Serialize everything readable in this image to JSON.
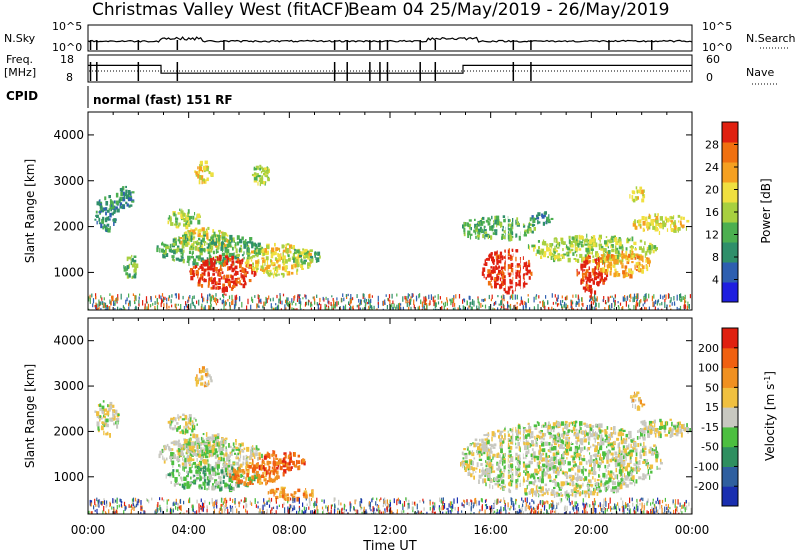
{
  "header": {
    "title": "Christmas Valley West (fitACF)",
    "beam_info": "Beam 04 25/May/2019 - 26/May/2019"
  },
  "summary_panels": {
    "nsky_label": "N.Sky",
    "nsky_ticks": [
      "10^5",
      "10^0"
    ],
    "nsearch_label": "N.Search",
    "nsearch_ticks": [
      "10^5",
      "10^0"
    ],
    "freq_label": "Freq.",
    "freq_unit": "[MHz]",
    "freq_ticks": [
      "18",
      "8"
    ],
    "nave_label": "Nave",
    "nave_ticks": [
      "60",
      "0"
    ],
    "cpid_label": "CPID",
    "cpid_text": "normal (fast) 151 RF"
  },
  "x_axis": {
    "label": "Time UT",
    "ticks": [
      "00:00",
      "04:00",
      "08:00",
      "12:00",
      "16:00",
      "20:00",
      "00:00"
    ]
  },
  "power_panel": {
    "ylabel": "Slant Range [km]",
    "yticks": [
      "1000",
      "2000",
      "3000",
      "4000"
    ],
    "colorbar_label": "Power [dB]",
    "colorbar_ticks": [
      "4",
      "8",
      "12",
      "16",
      "20",
      "24",
      "28"
    ],
    "colors": [
      "#1f1fe0",
      "#2e5fb0",
      "#2f8f6a",
      "#4caf50",
      "#a8d040",
      "#f0e040",
      "#f5a020",
      "#f07010",
      "#e02010"
    ]
  },
  "velocity_panel": {
    "ylabel": "Slant Range [km]",
    "yticks": [
      "1000",
      "2000",
      "3000",
      "4000"
    ],
    "colorbar_label": "Velocity [m s^-1]",
    "colorbar_ticks": [
      "200",
      "100",
      "50",
      "15",
      "-15",
      "-50",
      "-100",
      "-200"
    ],
    "colors": [
      "#1a2fb0",
      "#2f5f9f",
      "#2f8f60",
      "#4cbf40",
      "#c8c8c0",
      "#f0c040",
      "#f09020",
      "#f06010",
      "#e02010"
    ]
  },
  "chart_data": {
    "type": "heatmap",
    "x_range_hours": [
      0,
      24
    ],
    "y_range_km": [
      180,
      4500
    ],
    "freq_mhz": [
      {
        "t": 0,
        "f": 14
      },
      {
        "t": 2.9,
        "f": 14
      },
      {
        "t": 2.9,
        "f": 11
      },
      {
        "t": 14.9,
        "f": 11
      },
      {
        "t": 14.9,
        "f": 14
      },
      {
        "t": 24,
        "f": 14
      }
    ],
    "power_regions": [
      {
        "t0": 0.2,
        "t1": 1.2,
        "r0": 1950,
        "r1": 2700,
        "level": 2
      },
      {
        "t0": 1.0,
        "t1": 1.8,
        "r0": 2400,
        "r1": 2900,
        "level": 2
      },
      {
        "t0": 1.4,
        "t1": 2.0,
        "r0": 900,
        "r1": 1400,
        "level": 3
      },
      {
        "t0": 3.1,
        "t1": 4.4,
        "r0": 2000,
        "r1": 2400,
        "level": 4
      },
      {
        "t0": 3.6,
        "t1": 5.6,
        "r0": 1500,
        "r1": 2000,
        "level": 5
      },
      {
        "t0": 4.2,
        "t1": 4.9,
        "r0": 3000,
        "r1": 3450,
        "level": 5
      },
      {
        "t0": 6.5,
        "t1": 7.2,
        "r0": 2900,
        "r1": 3400,
        "level": 4
      },
      {
        "t0": 2.7,
        "t1": 6.9,
        "r0": 1200,
        "r1": 1900,
        "level": 3
      },
      {
        "t0": 4.0,
        "t1": 6.6,
        "r0": 650,
        "r1": 1400,
        "level": 8
      },
      {
        "t0": 6.2,
        "t1": 8.9,
        "r0": 950,
        "r1": 1650,
        "level": 5
      },
      {
        "t0": 7.9,
        "t1": 9.2,
        "r0": 1200,
        "r1": 1550,
        "level": 3
      },
      {
        "t0": 14.7,
        "t1": 17.8,
        "r0": 1750,
        "r1": 2250,
        "level": 3
      },
      {
        "t0": 15.6,
        "t1": 17.6,
        "r0": 600,
        "r1": 1550,
        "level": 8
      },
      {
        "t0": 17.4,
        "t1": 22.6,
        "r0": 1250,
        "r1": 1850,
        "level": 4
      },
      {
        "t0": 19.4,
        "t1": 20.6,
        "r0": 600,
        "r1": 1400,
        "level": 8
      },
      {
        "t0": 20.1,
        "t1": 22.3,
        "r0": 950,
        "r1": 1500,
        "level": 6
      },
      {
        "t0": 21.6,
        "t1": 23.9,
        "r0": 1900,
        "r1": 2300,
        "level": 5
      },
      {
        "t0": 21.5,
        "t1": 22.1,
        "r0": 2550,
        "r1": 2900,
        "level": 5
      },
      {
        "t0": 17.5,
        "t1": 18.5,
        "r0": 2100,
        "r1": 2350,
        "level": 2
      }
    ],
    "velocity_regions": [
      {
        "t0": 0.2,
        "t1": 1.2,
        "r0": 1950,
        "r1": 2700,
        "level": 4
      },
      {
        "t0": 3.1,
        "t1": 4.4,
        "r0": 2000,
        "r1": 2400,
        "level": 4
      },
      {
        "t0": 3.6,
        "t1": 5.6,
        "r0": 1500,
        "r1": 2000,
        "level": 4
      },
      {
        "t0": 4.2,
        "t1": 4.9,
        "r0": 3000,
        "r1": 3450,
        "level": 5
      },
      {
        "t0": 2.7,
        "t1": 6.9,
        "r0": 1200,
        "r1": 1900,
        "level": 4
      },
      {
        "t0": 3.0,
        "t1": 6.8,
        "r0": 750,
        "r1": 1300,
        "level": 3
      },
      {
        "t0": 5.5,
        "t1": 7.6,
        "r0": 850,
        "r1": 1300,
        "level": 6
      },
      {
        "t0": 6.5,
        "t1": 8.6,
        "r0": 1100,
        "r1": 1600,
        "level": 7
      },
      {
        "t0": 7.0,
        "t1": 9.0,
        "r0": 550,
        "r1": 800,
        "level": 6
      },
      {
        "t0": 14.7,
        "t1": 22.8,
        "r0": 600,
        "r1": 2250,
        "level": 4
      },
      {
        "t0": 21.6,
        "t1": 23.9,
        "r0": 1900,
        "r1": 2300,
        "level": 4
      },
      {
        "t0": 21.5,
        "t1": 22.1,
        "r0": 2550,
        "r1": 2900,
        "level": 5
      }
    ]
  }
}
